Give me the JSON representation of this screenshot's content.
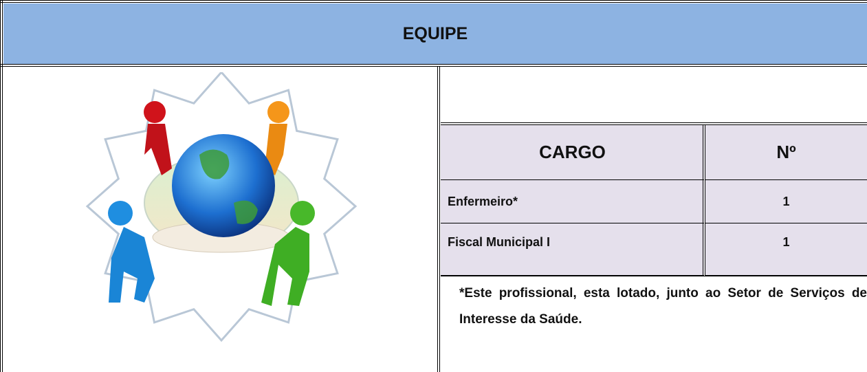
{
  "header": {
    "title": "EQUIPE"
  },
  "table": {
    "columns": [
      "CARGO",
      "Nº"
    ],
    "rows": [
      [
        "Enfermeiro*",
        1
      ],
      [
        "Fiscal Municipal I",
        1
      ]
    ]
  },
  "note": "*Este profissional, esta lotado, junto ao Setor de Serviços de Interesse da Saúde."
}
